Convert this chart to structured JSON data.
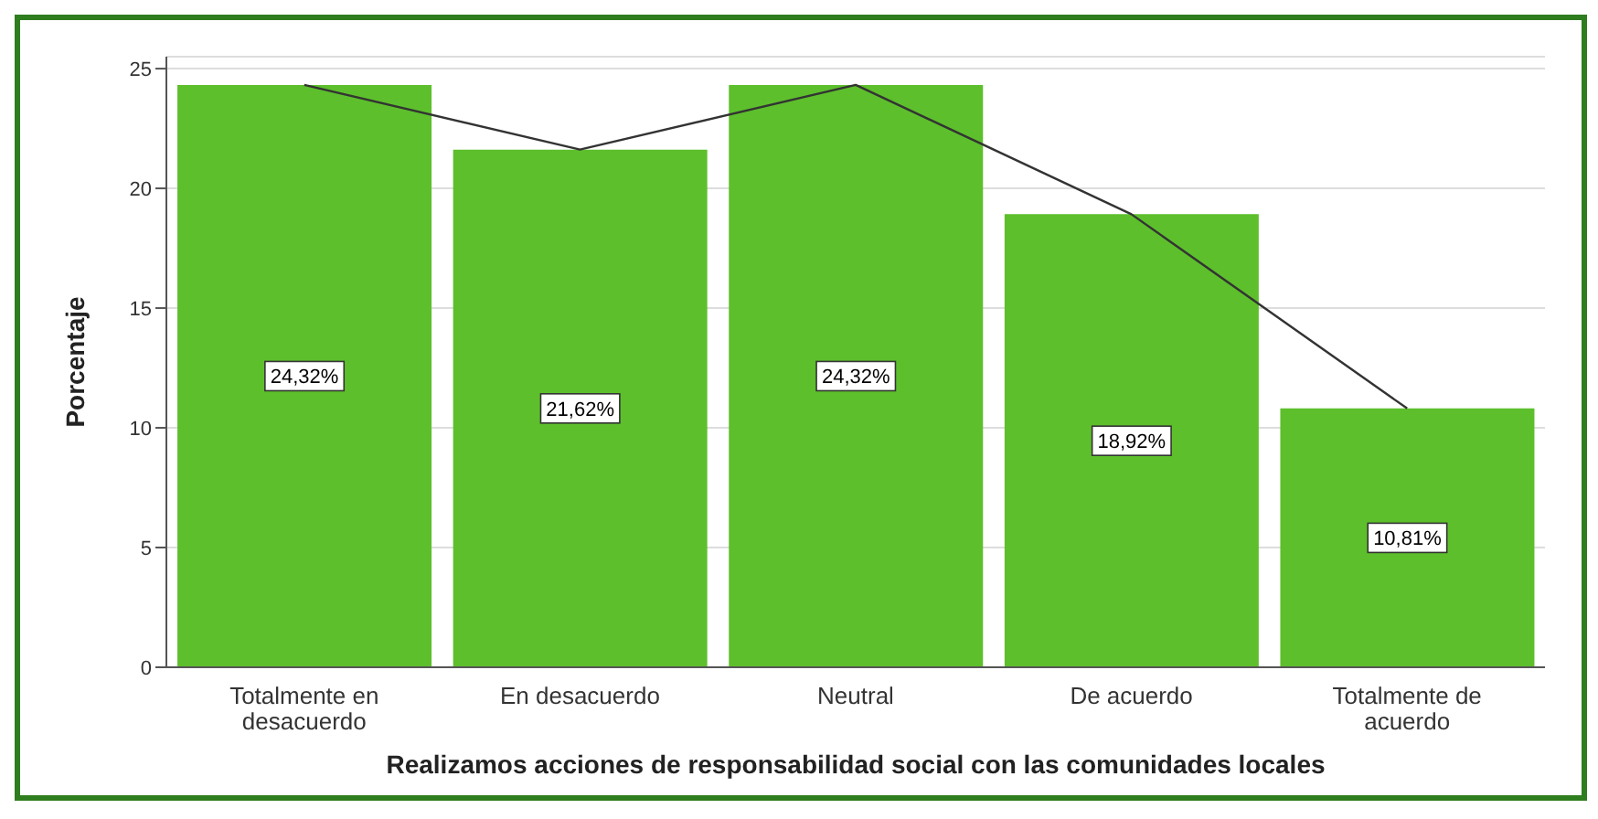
{
  "chart_data": {
    "type": "bar",
    "xlabel": "Realizamos acciones de responsabilidad social con las comunidades locales",
    "ylabel": "Porcentaje",
    "categories": [
      "Totalmente en desacuerdo",
      "En desacuerdo",
      "Neutral",
      "De acuerdo",
      "Totalmente de acuerdo"
    ],
    "series": [
      {
        "color": "#5dbf2c",
        "values": [
          24.32,
          21.62,
          24.32,
          18.92,
          10.81
        ],
        "value_labels": [
          "24,32%",
          "21,62%",
          "24,32%",
          "18,92%",
          "10,81%"
        ]
      },
      {
        "type": "line",
        "color": "#333333",
        "values": [
          24.32,
          21.62,
          24.32,
          18.92,
          10.81
        ]
      }
    ],
    "ylim": [
      0,
      25.5
    ],
    "yticks": [
      0,
      5,
      10,
      15,
      20,
      25
    ],
    "grid": "y"
  }
}
